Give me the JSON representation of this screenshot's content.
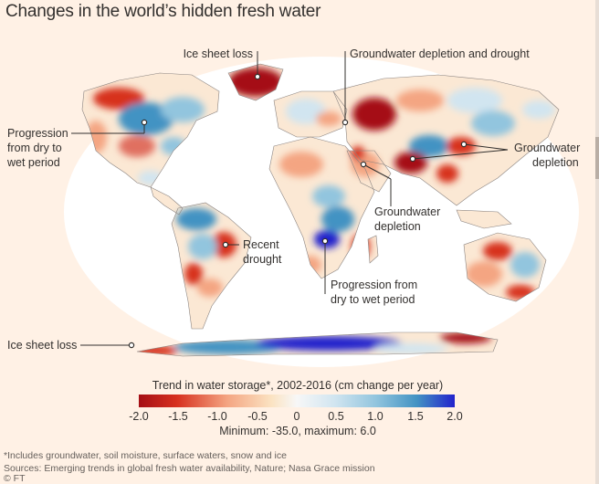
{
  "title": "Changes in the world’s hidden fresh water",
  "annotations": {
    "ice_sheet_loss_north": "Ice sheet loss",
    "groundwater_drought": "Groundwater depletion and drought",
    "progression_na_1": "Progression",
    "progression_na_2": "from dry to",
    "progression_na_3": "wet period",
    "groundwater_asia_1": "Groundwater",
    "groundwater_asia_2": "depletion",
    "groundwater_me_1": "Groundwater",
    "groundwater_me_2": "depletion",
    "recent_drought_1": "Recent",
    "recent_drought_2": "drought",
    "progression_af_1": "Progression from",
    "progression_af_2": "dry to wet period",
    "ice_sheet_loss_south": "Ice sheet loss"
  },
  "legend": {
    "title": "Trend in water storage*, 2002-2016 (cm change per year)",
    "ticks": [
      "-2.0",
      "-1.5",
      "-1.0",
      "-0.5",
      "0",
      "0.5",
      "1.0",
      "1.5",
      "2.0"
    ],
    "min_max": "Minimum: -35.0, maximum: 6.0",
    "colors": [
      "#a50f15",
      "#d7301f",
      "#f4a582",
      "#fbe3c2",
      "#f7f7f7",
      "#d1e5f0",
      "#92c5de",
      "#4393c3",
      "#2222cc"
    ]
  },
  "footer": {
    "note": "*Includes groundwater, soil moisture, surface waters, snow and ice",
    "sources": "Sources: Emerging trends in global fresh water availability, Nature; Nasa Grace mission",
    "credit": "© FT"
  }
}
